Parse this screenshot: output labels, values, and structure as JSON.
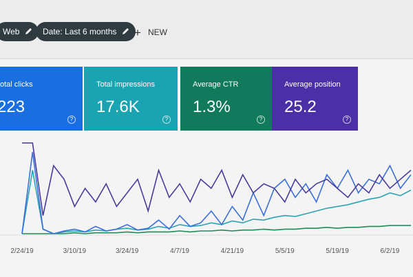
{
  "toolbar": {
    "filters": [
      "Web",
      "Date: Last 6 months"
    ],
    "new_button": "NEW"
  },
  "metrics": [
    {
      "label": "otal clicks",
      "value": "223",
      "color": "#1a6fe0"
    },
    {
      "label": "Total impressions",
      "value": "17.6K",
      "color": "#1aa3b0"
    },
    {
      "label": "Average CTR",
      "value": "1.3%",
      "color": "#117a5c"
    },
    {
      "label": "Average position",
      "value": "25.2",
      "color": "#4b2fa6"
    }
  ],
  "chart": {
    "type": "line",
    "categories": [
      "2/24/19",
      null,
      null,
      null,
      null,
      "3/10/19",
      null,
      null,
      null,
      null,
      "3/24/19",
      null,
      null,
      null,
      null,
      "4/7/19",
      null,
      null,
      null,
      null,
      "4/21/19",
      null,
      null,
      null,
      null,
      "5/5/19",
      null,
      null,
      null,
      null,
      "5/19/19",
      null,
      null,
      null,
      null,
      "6/2/19",
      null,
      null
    ],
    "ylim": [
      0,
      100
    ],
    "series": [
      {
        "color": "#4a3a9c",
        "values": [
          100,
          100,
          20,
          75,
          60,
          30,
          50,
          35,
          55,
          30,
          45,
          60,
          25,
          70,
          40,
          55,
          35,
          60,
          50,
          70,
          40,
          65,
          45,
          55,
          50,
          35,
          60,
          45,
          55,
          60,
          50,
          40,
          55,
          45,
          65,
          50,
          60,
          70
        ]
      },
      {
        "color": "#3b6fd8",
        "values": [
          0,
          90,
          5,
          0,
          3,
          5,
          2,
          8,
          3,
          5,
          10,
          4,
          6,
          15,
          5,
          20,
          8,
          12,
          25,
          10,
          30,
          15,
          45,
          20,
          50,
          60,
          40,
          55,
          35,
          65,
          50,
          70,
          45,
          60,
          55,
          75,
          50,
          65
        ]
      },
      {
        "color": "#2ba3b3",
        "values": [
          0,
          70,
          5,
          0,
          2,
          3,
          2,
          4,
          3,
          5,
          6,
          4,
          5,
          8,
          6,
          10,
          8,
          9,
          12,
          10,
          14,
          12,
          16,
          15,
          18,
          20,
          19,
          22,
          25,
          28,
          30,
          32,
          35,
          38,
          40,
          45,
          42,
          48
        ]
      },
      {
        "color": "#1f8a5a",
        "values": [
          0,
          0,
          0,
          0,
          0,
          1,
          0,
          1,
          1,
          1,
          2,
          1,
          2,
          2,
          2,
          3,
          2,
          3,
          3,
          4,
          3,
          4,
          4,
          5,
          4,
          5,
          5,
          6,
          6,
          7,
          6,
          7,
          7,
          8,
          8,
          9,
          9,
          9
        ]
      }
    ]
  }
}
